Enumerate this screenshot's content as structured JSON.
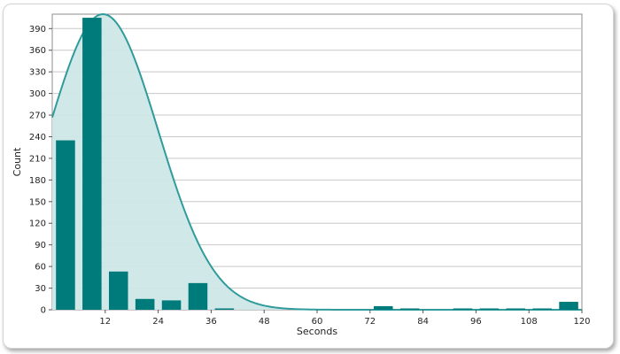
{
  "chart_data": {
    "type": "bar",
    "title": "",
    "xlabel": "Seconds",
    "ylabel": "Count",
    "xlim": [
      0,
      120
    ],
    "ylim": [
      0,
      410
    ],
    "x_ticks": [
      12,
      24,
      36,
      48,
      60,
      72,
      84,
      96,
      108,
      120
    ],
    "y_ticks": [
      0,
      30,
      60,
      90,
      120,
      150,
      180,
      210,
      240,
      270,
      300,
      330,
      360,
      390
    ],
    "grid": true,
    "legend": "none",
    "bin_width": 6,
    "series": [
      {
        "type": "bar",
        "x": [
          3,
          9,
          15,
          21,
          27,
          33,
          39,
          45,
          51,
          57,
          63,
          69,
          75,
          81,
          87,
          93,
          99,
          105,
          111,
          117
        ],
        "values": [
          235,
          405,
          53,
          15,
          13,
          37,
          1,
          0,
          0,
          0,
          0,
          0,
          5,
          1,
          0,
          1,
          1,
          1,
          1,
          11
        ],
        "color": "#007b7b"
      },
      {
        "type": "area",
        "curve": "normal-density",
        "peak_x": 11.5,
        "peak_y": 410,
        "left_sigma": 12.4,
        "right_sigma": 12.5,
        "line_color": "#2f9b9b",
        "fill_color": "#cde7e7"
      }
    ]
  }
}
